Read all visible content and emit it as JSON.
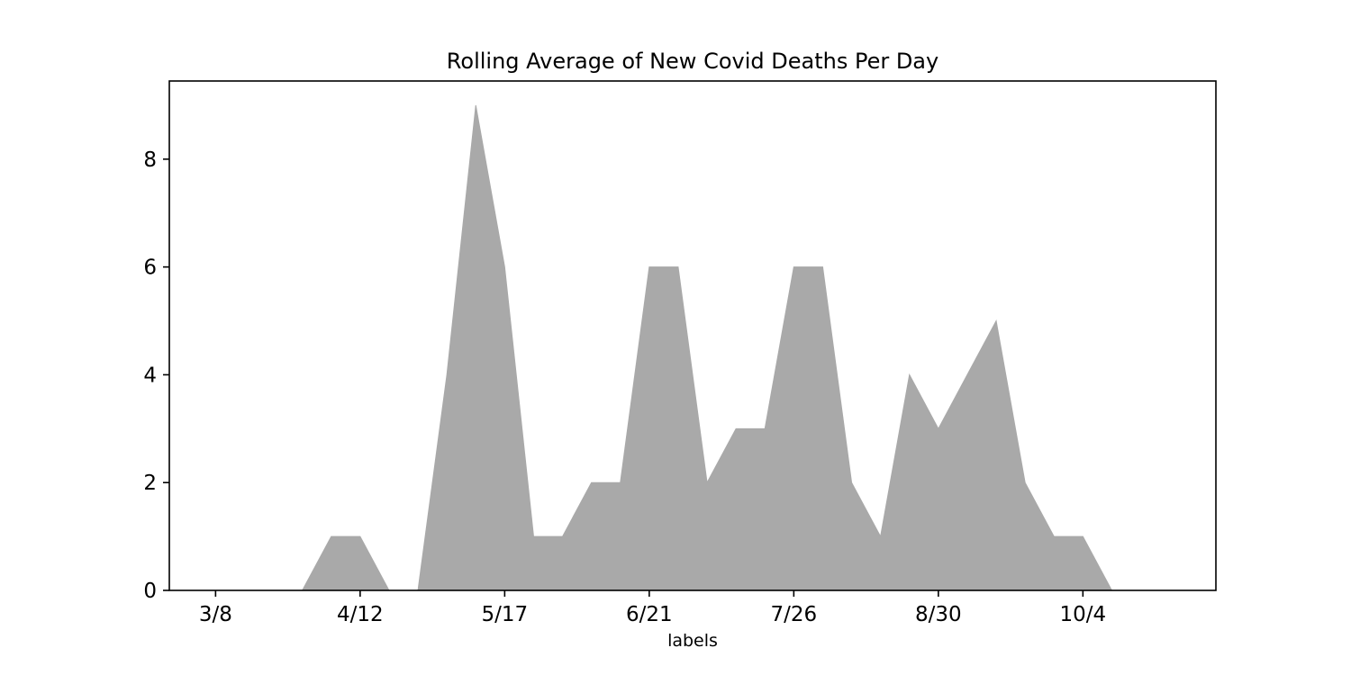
{
  "chart_data": {
    "type": "area",
    "title": "Rolling Average of New Covid Deaths Per Day",
    "xlabel": "labels",
    "ylabel": "",
    "x_tick_labels": [
      "3/8",
      "4/12",
      "5/17",
      "6/21",
      "7/26",
      "8/30",
      "10/4"
    ],
    "x_tick_index_step": 5,
    "values": [
      0,
      0,
      0,
      0,
      1,
      1,
      0,
      0,
      4,
      9,
      6,
      1,
      1,
      2,
      2,
      6,
      6,
      2,
      3,
      3,
      6,
      6,
      2,
      1,
      4,
      3,
      4,
      5,
      2,
      1,
      1,
      0,
      0,
      0
    ],
    "xlim": [
      -1.6,
      34.6
    ],
    "ylim": [
      0,
      9.45
    ],
    "y_ticks": [
      0,
      2,
      4,
      6,
      8
    ],
    "fill_color": "#a9a9a9",
    "grid": false,
    "legend": "none"
  }
}
